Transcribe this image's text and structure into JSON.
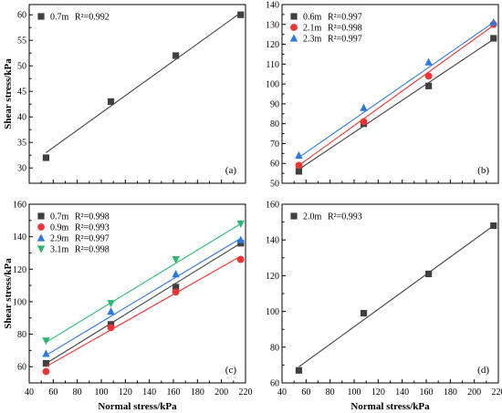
{
  "figure": {
    "shared_xlabel": "Normal stress/kPa",
    "shared_ylabel": "Shear stress/kPa"
  },
  "chart_data": [
    {
      "type": "scatter",
      "panel_label": "(a)",
      "xlim": [
        40,
        220
      ],
      "ylim": [
        27,
        62
      ],
      "xticks": [],
      "yticks": [
        30,
        35,
        40,
        45,
        50,
        55,
        60
      ],
      "ylabel": "Shear stress/kPa",
      "xlabel": "",
      "legend_position": "top-left",
      "series": [
        {
          "name": "0.7m",
          "r2": "R²=0.992",
          "marker": "square",
          "color": "#404040",
          "x": [
            54,
            108,
            162,
            216
          ],
          "y": [
            32,
            43,
            52,
            60
          ],
          "fit": [
            [
              54,
              33
            ],
            [
              216,
              60.4
            ]
          ]
        }
      ]
    },
    {
      "type": "scatter",
      "panel_label": "(b)",
      "xlim": [
        40,
        220
      ],
      "ylim": [
        50,
        140
      ],
      "xticks": [],
      "yticks": [
        50,
        60,
        70,
        80,
        90,
        100,
        110,
        120,
        130,
        140
      ],
      "ylabel": "",
      "xlabel": "",
      "legend_position": "top-left",
      "series": [
        {
          "name": "0.6m",
          "r2": "R²=0.997",
          "marker": "square",
          "color": "#404040",
          "x": [
            54,
            108,
            162,
            216
          ],
          "y": [
            56,
            80,
            99,
            123
          ],
          "fit": [
            [
              54,
              57
            ],
            [
              216,
              122.5
            ]
          ]
        },
        {
          "name": "2.1m",
          "r2": "R²=0.998",
          "marker": "circle",
          "color": "#ee3333",
          "x": [
            54,
            108,
            162,
            216
          ],
          "y": [
            59,
            81,
            104,
            130
          ],
          "fit": [
            [
              54,
              59
            ],
            [
              216,
              129.5
            ]
          ]
        },
        {
          "name": "2.3m",
          "r2": "R²=0.997",
          "marker": "triangle-up",
          "color": "#2f78de",
          "x": [
            54,
            108,
            162,
            216
          ],
          "y": [
            64,
            88,
            111,
            131
          ],
          "fit": [
            [
              54,
              63
            ],
            [
              216,
              131
            ]
          ]
        }
      ]
    },
    {
      "type": "scatter",
      "panel_label": "(c)",
      "xlim": [
        40,
        220
      ],
      "ylim": [
        50,
        160
      ],
      "xticks": [
        40,
        60,
        80,
        100,
        120,
        140,
        160,
        180,
        200,
        220
      ],
      "yticks": [
        60,
        80,
        100,
        120,
        140,
        160
      ],
      "ylabel": "Shear stress/kPa",
      "xlabel": "Normal stress/kPa",
      "legend_position": "top-left",
      "series": [
        {
          "name": "0.7m",
          "r2": "R²=0.998",
          "marker": "square",
          "color": "#404040",
          "x": [
            54,
            108,
            162,
            216
          ],
          "y": [
            62,
            86,
            109,
            136
          ],
          "fit": [
            [
              54,
              62
            ],
            [
              216,
              136
            ]
          ]
        },
        {
          "name": "0.9m",
          "r2": "R²=0.993",
          "marker": "circle",
          "color": "#ee3333",
          "x": [
            54,
            108,
            162,
            216
          ],
          "y": [
            57,
            84,
            106,
            126
          ],
          "fit": [
            [
              54,
              60
            ],
            [
              216,
              128
            ]
          ]
        },
        {
          "name": "2.9m",
          "r2": "R²=0.997",
          "marker": "triangle-up",
          "color": "#2f78de",
          "x": [
            54,
            108,
            162,
            216
          ],
          "y": [
            68,
            94,
            117,
            138
          ],
          "fit": [
            [
              54,
              67
            ],
            [
              216,
              139
            ]
          ]
        },
        {
          "name": "3.1m",
          "r2": "R²=0.998",
          "marker": "triangle-down",
          "color": "#2bb673",
          "x": [
            54,
            108,
            162,
            216
          ],
          "y": [
            76,
            99,
            126,
            148
          ],
          "fit": [
            [
              54,
              75
            ],
            [
              216,
              148
            ]
          ]
        }
      ]
    },
    {
      "type": "scatter",
      "panel_label": "(d)",
      "xlim": [
        40,
        220
      ],
      "ylim": [
        60,
        160
      ],
      "xticks": [
        40,
        60,
        80,
        100,
        120,
        140,
        160,
        180,
        200,
        220
      ],
      "yticks": [
        60,
        80,
        100,
        120,
        140,
        160
      ],
      "ylabel": "",
      "xlabel": "Normal stress/kPa",
      "legend_position": "top-left",
      "series": [
        {
          "name": "2.0m",
          "r2": "R²=0.993",
          "marker": "square",
          "color": "#404040",
          "x": [
            54,
            108,
            162,
            216
          ],
          "y": [
            67,
            99,
            121,
            148
          ],
          "fit": [
            [
              54,
              69
            ],
            [
              216,
              148
            ]
          ]
        }
      ]
    }
  ]
}
